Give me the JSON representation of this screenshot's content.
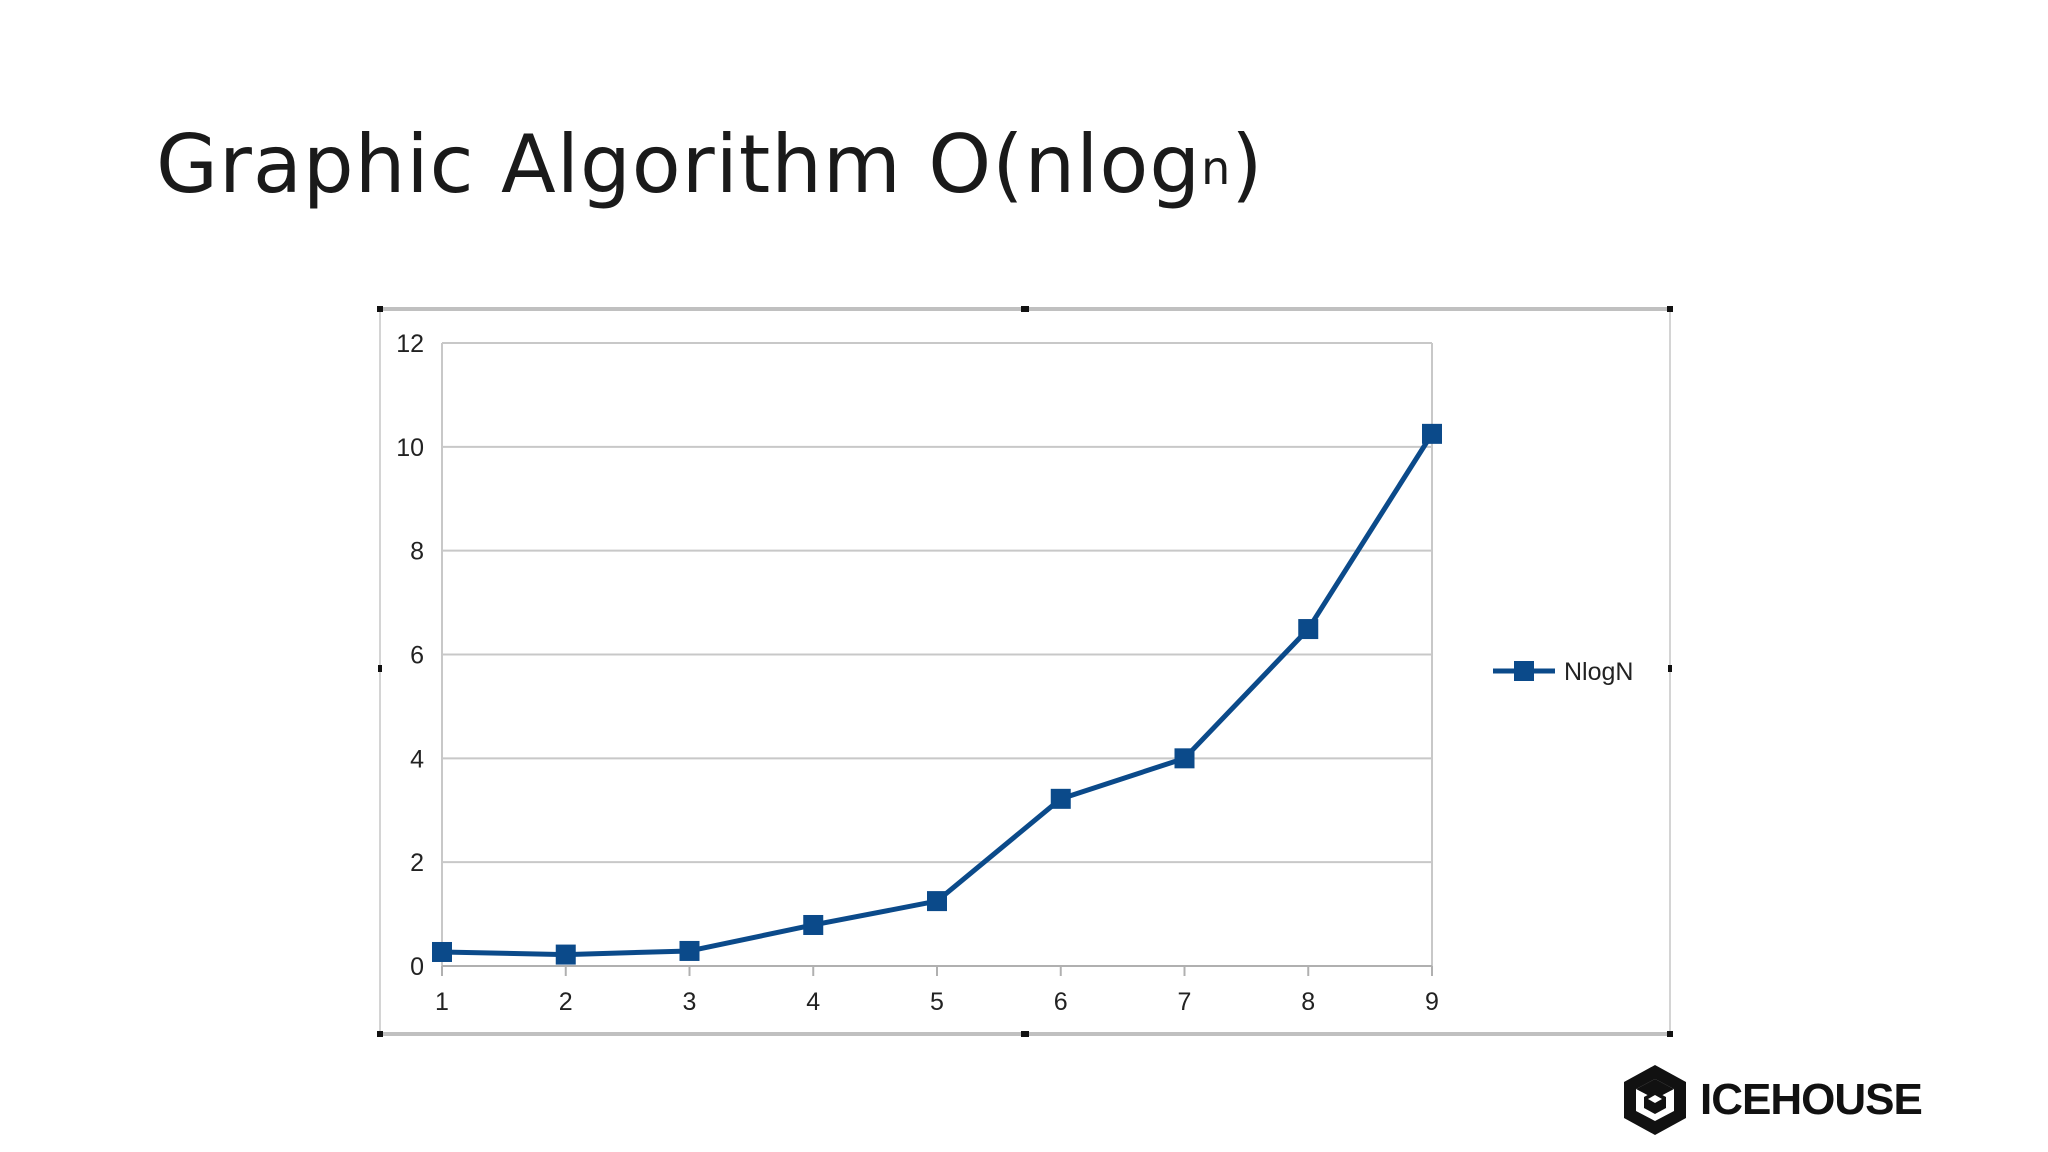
{
  "slide": {
    "title_main": "Graphic  Algorithm O(nlog",
    "title_sup": "n",
    "title_close": ")"
  },
  "brand": {
    "logo_text": "ICEHOUSE"
  },
  "colors": {
    "series": "#0b4a8a",
    "grid": "#c8c8c8",
    "frame": "#c0c0c0"
  },
  "chart_data": {
    "type": "line",
    "categories": [
      "1",
      "2",
      "3",
      "4",
      "5",
      "6",
      "7",
      "8",
      "9"
    ],
    "series": [
      {
        "name": "NlogN",
        "values": [
          0.27,
          0.22,
          0.29,
          0.79,
          1.25,
          3.22,
          4.0,
          6.49,
          10.25
        ]
      }
    ],
    "ylim": [
      0,
      12
    ],
    "yticks": [
      0,
      2,
      4,
      6,
      8,
      10,
      12
    ],
    "grid": true,
    "legend": "right",
    "marker": "square"
  }
}
